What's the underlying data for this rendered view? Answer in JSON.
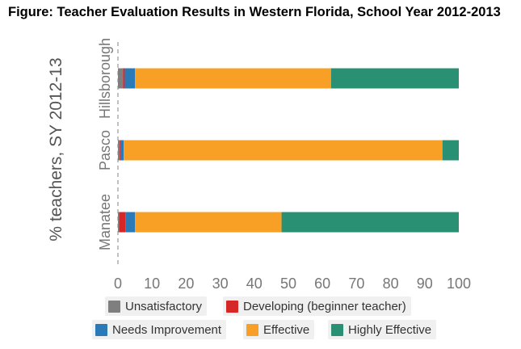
{
  "title": "Figure: Teacher Evaluation Results in Western Florida, School Year 2012-2013",
  "chart_data": {
    "type": "bar",
    "orientation": "horizontal",
    "stacked": true,
    "categories": [
      "Hillsborough",
      "Pasco",
      "Manatee"
    ],
    "series": [
      {
        "name": "Unsatisfactory",
        "color": "#7f7f7f",
        "values": [
          1.5,
          0.5,
          0.3
        ]
      },
      {
        "name": "Developing (beginner teacher)",
        "color": "#d62728",
        "values": [
          0.5,
          0.2,
          1.9
        ]
      },
      {
        "name": "Needs Improvement",
        "color": "#2a7ab8",
        "values": [
          3.0,
          1.0,
          2.8
        ]
      },
      {
        "name": "Effective",
        "color": "#f7a025",
        "values": [
          57.5,
          93.5,
          43.0
        ]
      },
      {
        "name": "Highly Effective",
        "color": "#2a9073",
        "values": [
          37.5,
          4.8,
          52.0
        ]
      }
    ],
    "xlabel": "",
    "ylabel": "% teachers, SY 2012-13",
    "xlim": [
      0,
      100
    ],
    "xticks": [
      0,
      10,
      20,
      30,
      40,
      50,
      60,
      70,
      80,
      90,
      100
    ],
    "grid": false,
    "legend_position": "bottom"
  }
}
